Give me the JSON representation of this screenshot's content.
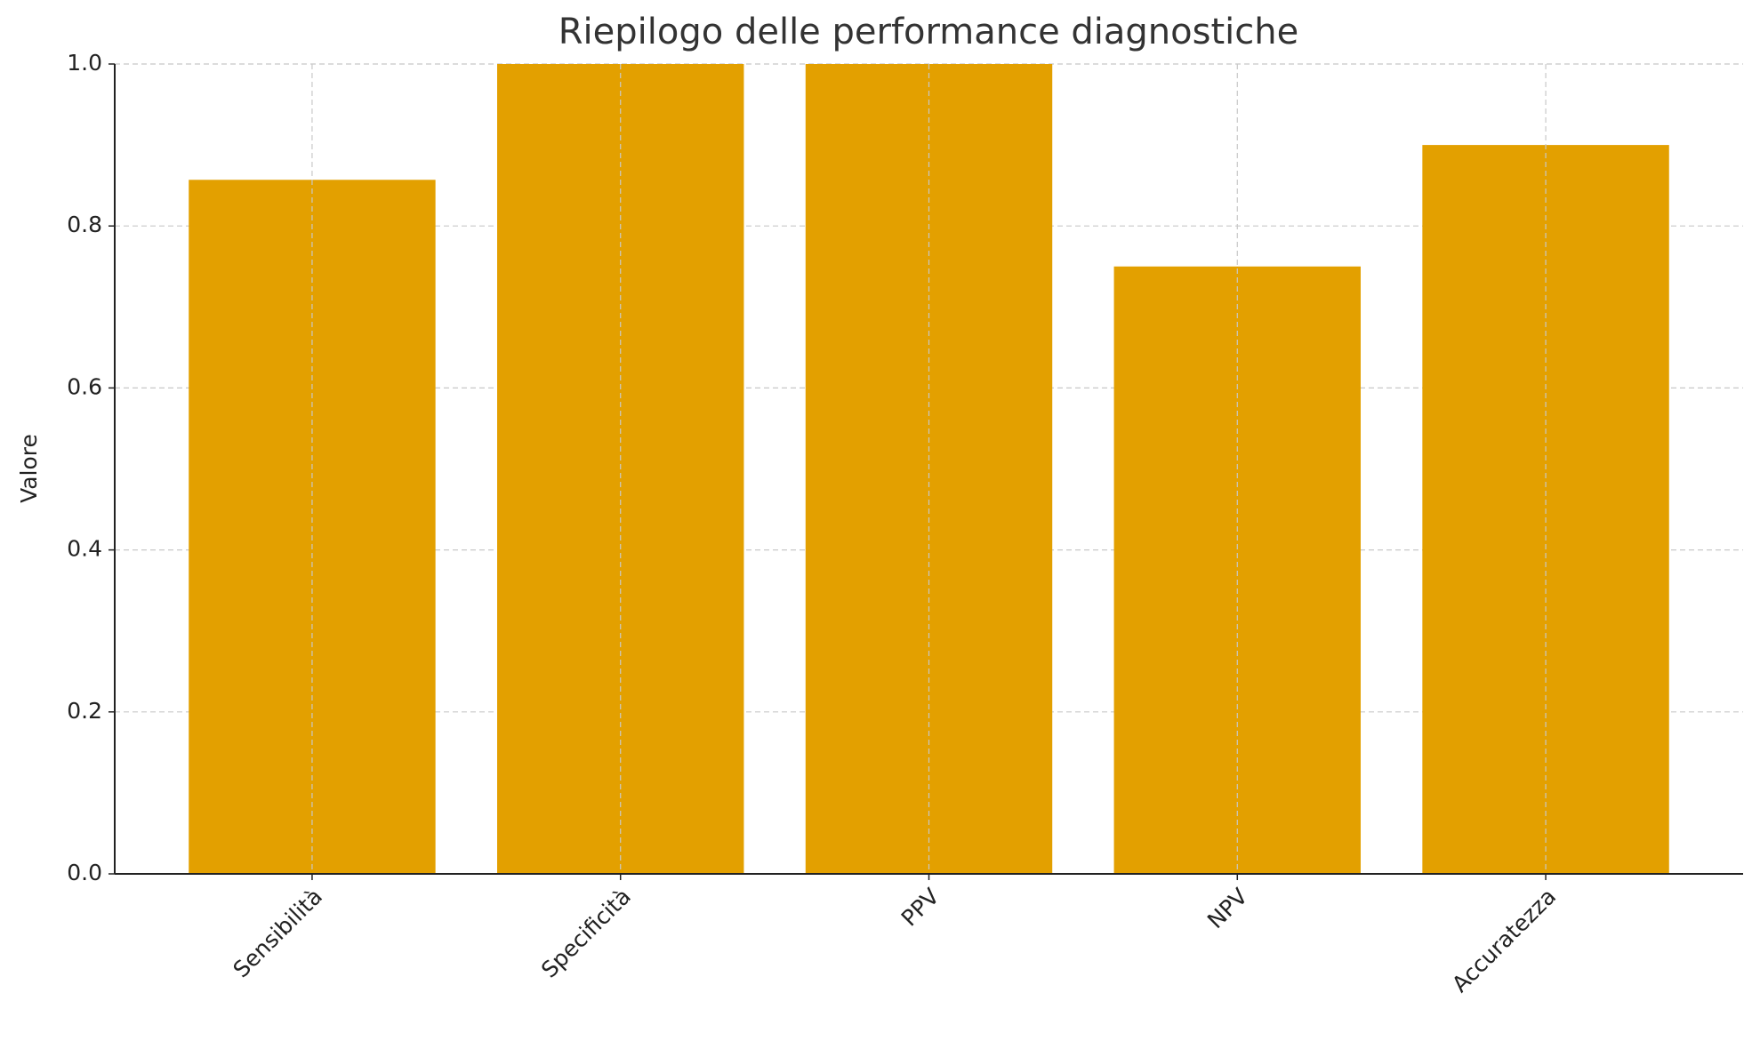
{
  "chart_data": {
    "type": "bar",
    "title": "Riepilogo delle performance diagnostiche",
    "y_label": "Valore",
    "categories": [
      "Sensibilità",
      "Specificità",
      "PPV",
      "NPV",
      "Accuratezza"
    ],
    "values": [
      0.857,
      1.0,
      1.0,
      0.75,
      0.9
    ],
    "color": "#e3a000",
    "ylim": [
      0,
      1
    ],
    "yticks": [
      {
        "value": 0,
        "label": "0.0"
      },
      0.2,
      0.4,
      0.6,
      0.8,
      {
        "value": 1,
        "label": "1.0"
      }
    ],
    "grid": true
  }
}
